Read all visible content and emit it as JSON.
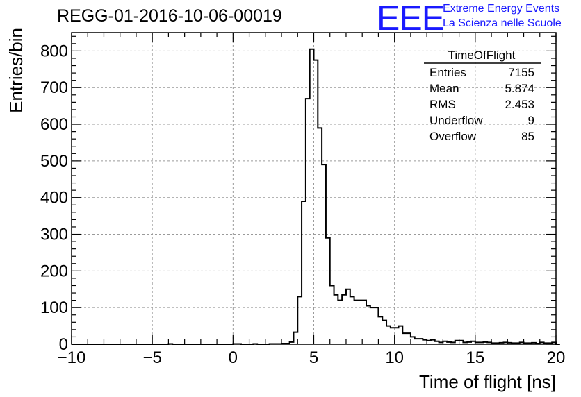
{
  "header": {
    "run_title": "REGG-01-2016-10-06-00019",
    "logo_text": "EEE",
    "logo_line1": "Extreme Energy Events",
    "logo_line2": "La Scienza nelle Scuole",
    "logo_color": "#1a1aff"
  },
  "stats_box": {
    "title": "TimeOfFlight",
    "rows": [
      {
        "label": "Entries",
        "value": "7155"
      },
      {
        "label": "Mean",
        "value": "5.874"
      },
      {
        "label": "RMS",
        "value": "2.453"
      },
      {
        "label": "Underflow",
        "value": "9"
      },
      {
        "label": "Overflow",
        "value": "85"
      }
    ]
  },
  "chart_data": {
    "type": "histogram",
    "title": "REGG-01-2016-10-06-00019",
    "xlabel": "Time of flight [ns]",
    "ylabel": "Entries/bin",
    "xlim": [
      -10,
      20
    ],
    "ylim": [
      0,
      850
    ],
    "x_ticks": [
      -10,
      -5,
      0,
      5,
      10,
      15,
      20
    ],
    "x_tick_labels": [
      "−10",
      "−5",
      "0",
      "5",
      "10",
      "15",
      "20"
    ],
    "y_ticks": [
      0,
      100,
      200,
      300,
      400,
      500,
      600,
      700,
      800
    ],
    "y_tick_labels": [
      "0",
      "100",
      "200",
      "300",
      "400",
      "500",
      "600",
      "700",
      "800"
    ],
    "grid": true,
    "line_color": "#000000",
    "bin_start": -10,
    "bin_width": 0.25,
    "values": [
      0,
      0,
      0,
      0,
      0,
      0,
      0,
      0,
      0,
      0,
      0,
      0,
      0,
      0,
      0,
      0,
      0,
      0,
      0,
      0,
      0,
      0,
      0,
      0,
      1,
      0,
      0,
      0,
      0,
      0,
      0,
      0,
      0,
      0,
      0,
      0,
      0,
      0,
      0,
      0,
      1,
      1,
      0,
      0,
      0,
      1,
      0,
      0,
      0,
      1,
      1,
      1,
      2,
      2,
      6,
      33,
      130,
      390,
      670,
      805,
      775,
      590,
      490,
      290,
      160,
      135,
      120,
      135,
      150,
      130,
      120,
      120,
      120,
      105,
      100,
      100,
      75,
      65,
      50,
      45,
      45,
      50,
      30,
      30,
      20,
      15,
      15,
      12,
      10,
      12,
      8,
      5,
      8,
      6,
      5,
      10,
      10,
      5,
      6,
      8,
      5,
      5,
      6,
      5,
      3,
      3,
      4,
      5,
      4,
      3,
      3,
      5,
      3,
      3,
      4,
      2,
      5,
      3,
      3,
      5,
      0
    ]
  }
}
